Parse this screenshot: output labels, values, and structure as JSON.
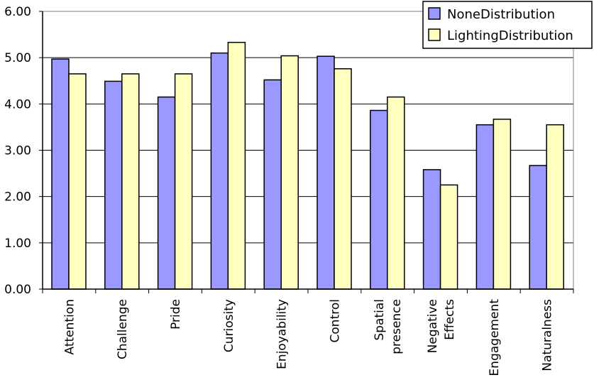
{
  "chart_data": {
    "type": "bar",
    "categories": [
      "Attention",
      "Challenge",
      "Pride",
      "Curiosity",
      "Enjoyability",
      "Control",
      "Spatial\npresence",
      "Negative\nEffects",
      "Engagement",
      "Naturalness"
    ],
    "series": [
      {
        "name": "NoneDistribution",
        "color": "#9999ff",
        "values": [
          4.97,
          4.49,
          4.15,
          5.1,
          4.52,
          5.03,
          3.86,
          2.58,
          3.55,
          2.67
        ]
      },
      {
        "name": "LightingDistribution",
        "color": "#ffffc0",
        "values": [
          4.65,
          4.65,
          4.65,
          5.33,
          5.04,
          4.76,
          4.15,
          2.25,
          3.67,
          3.55
        ]
      }
    ],
    "y_ticks": [
      "0.00",
      "1.00",
      "2.00",
      "3.00",
      "4.00",
      "5.00",
      "6.00"
    ],
    "ylim": [
      0,
      6
    ],
    "grid": true,
    "legend_position": "top-right",
    "title": "",
    "xlabel": "",
    "ylabel": ""
  }
}
